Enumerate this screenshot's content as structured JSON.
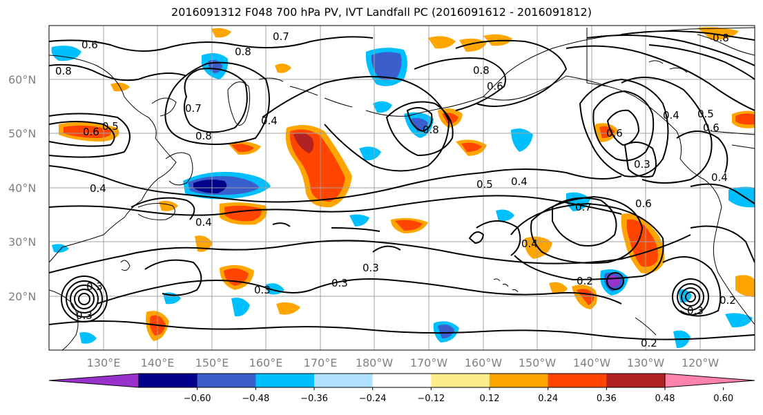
{
  "title": "2016091312 F048 700 hPa PV, IVT Landfall PC (2016091612 - 2016091812)",
  "lat_labels": [
    "60°N",
    "50°N",
    "40°N",
    "30°N",
    "20°N"
  ],
  "lon_labels": [
    "130°E",
    "140°E",
    "150°E",
    "160°E",
    "170°E",
    "180°W",
    "170°W",
    "160°W",
    "150°W",
    "140°W",
    "130°W",
    "120°W"
  ],
  "contour_labels": [
    "0.6",
    "0.7",
    "0.8",
    "0.8",
    "0.7",
    "0.8",
    "0.5",
    "0.6",
    "0.8",
    "0.4",
    "0.4",
    "0.5",
    "0.4",
    "0.4",
    "0.5",
    "0.4",
    "0.6",
    "0.7",
    "0.3",
    "0.4",
    "0.3",
    "0.3",
    "0.3",
    "0.2",
    "0.3",
    "0.3",
    "0.2",
    "0.2",
    "0.8",
    "0.8",
    "0.6",
    "0.4",
    "0.6",
    "0.6",
    "0.3"
  ],
  "colorbar": {
    "ticks": [
      "−0.60",
      "−0.48",
      "−0.36",
      "−0.24",
      "−0.12",
      "0.12",
      "0.24",
      "0.36",
      "0.48",
      "0.60"
    ],
    "colors": [
      "#9932cc",
      "#00008b",
      "#3a5fcd",
      "#00bfff",
      "#b0e2ff",
      "#ffffff",
      "#ffec8b",
      "#ffa500",
      "#ff4500",
      "#b22222",
      "#ff82ab"
    ]
  },
  "fill_colors": {
    "neg_strong": "#00008b",
    "neg_mid": "#3a5fcd",
    "neg": "#00bfff",
    "neg_weak": "#b0e2ff",
    "pos_weak": "#ffec8b",
    "pos": "#ffa500",
    "pos_mid": "#ff4500",
    "pos_strong": "#b22222"
  }
}
